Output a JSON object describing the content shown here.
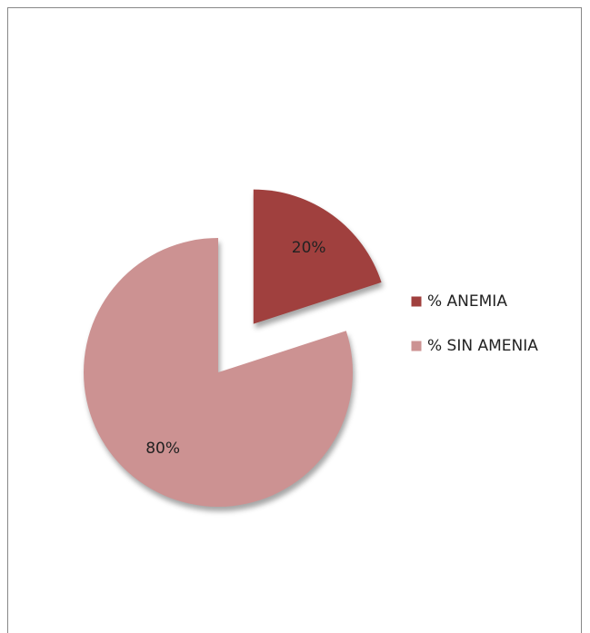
{
  "chart_data": {
    "type": "pie",
    "categories": [
      "% ANEMIA",
      "% SIN AMENIA"
    ],
    "values": [
      20,
      80
    ],
    "value_labels": [
      "20%",
      "80%"
    ],
    "colors": [
      "#a0403e",
      "#cc9292"
    ]
  }
}
